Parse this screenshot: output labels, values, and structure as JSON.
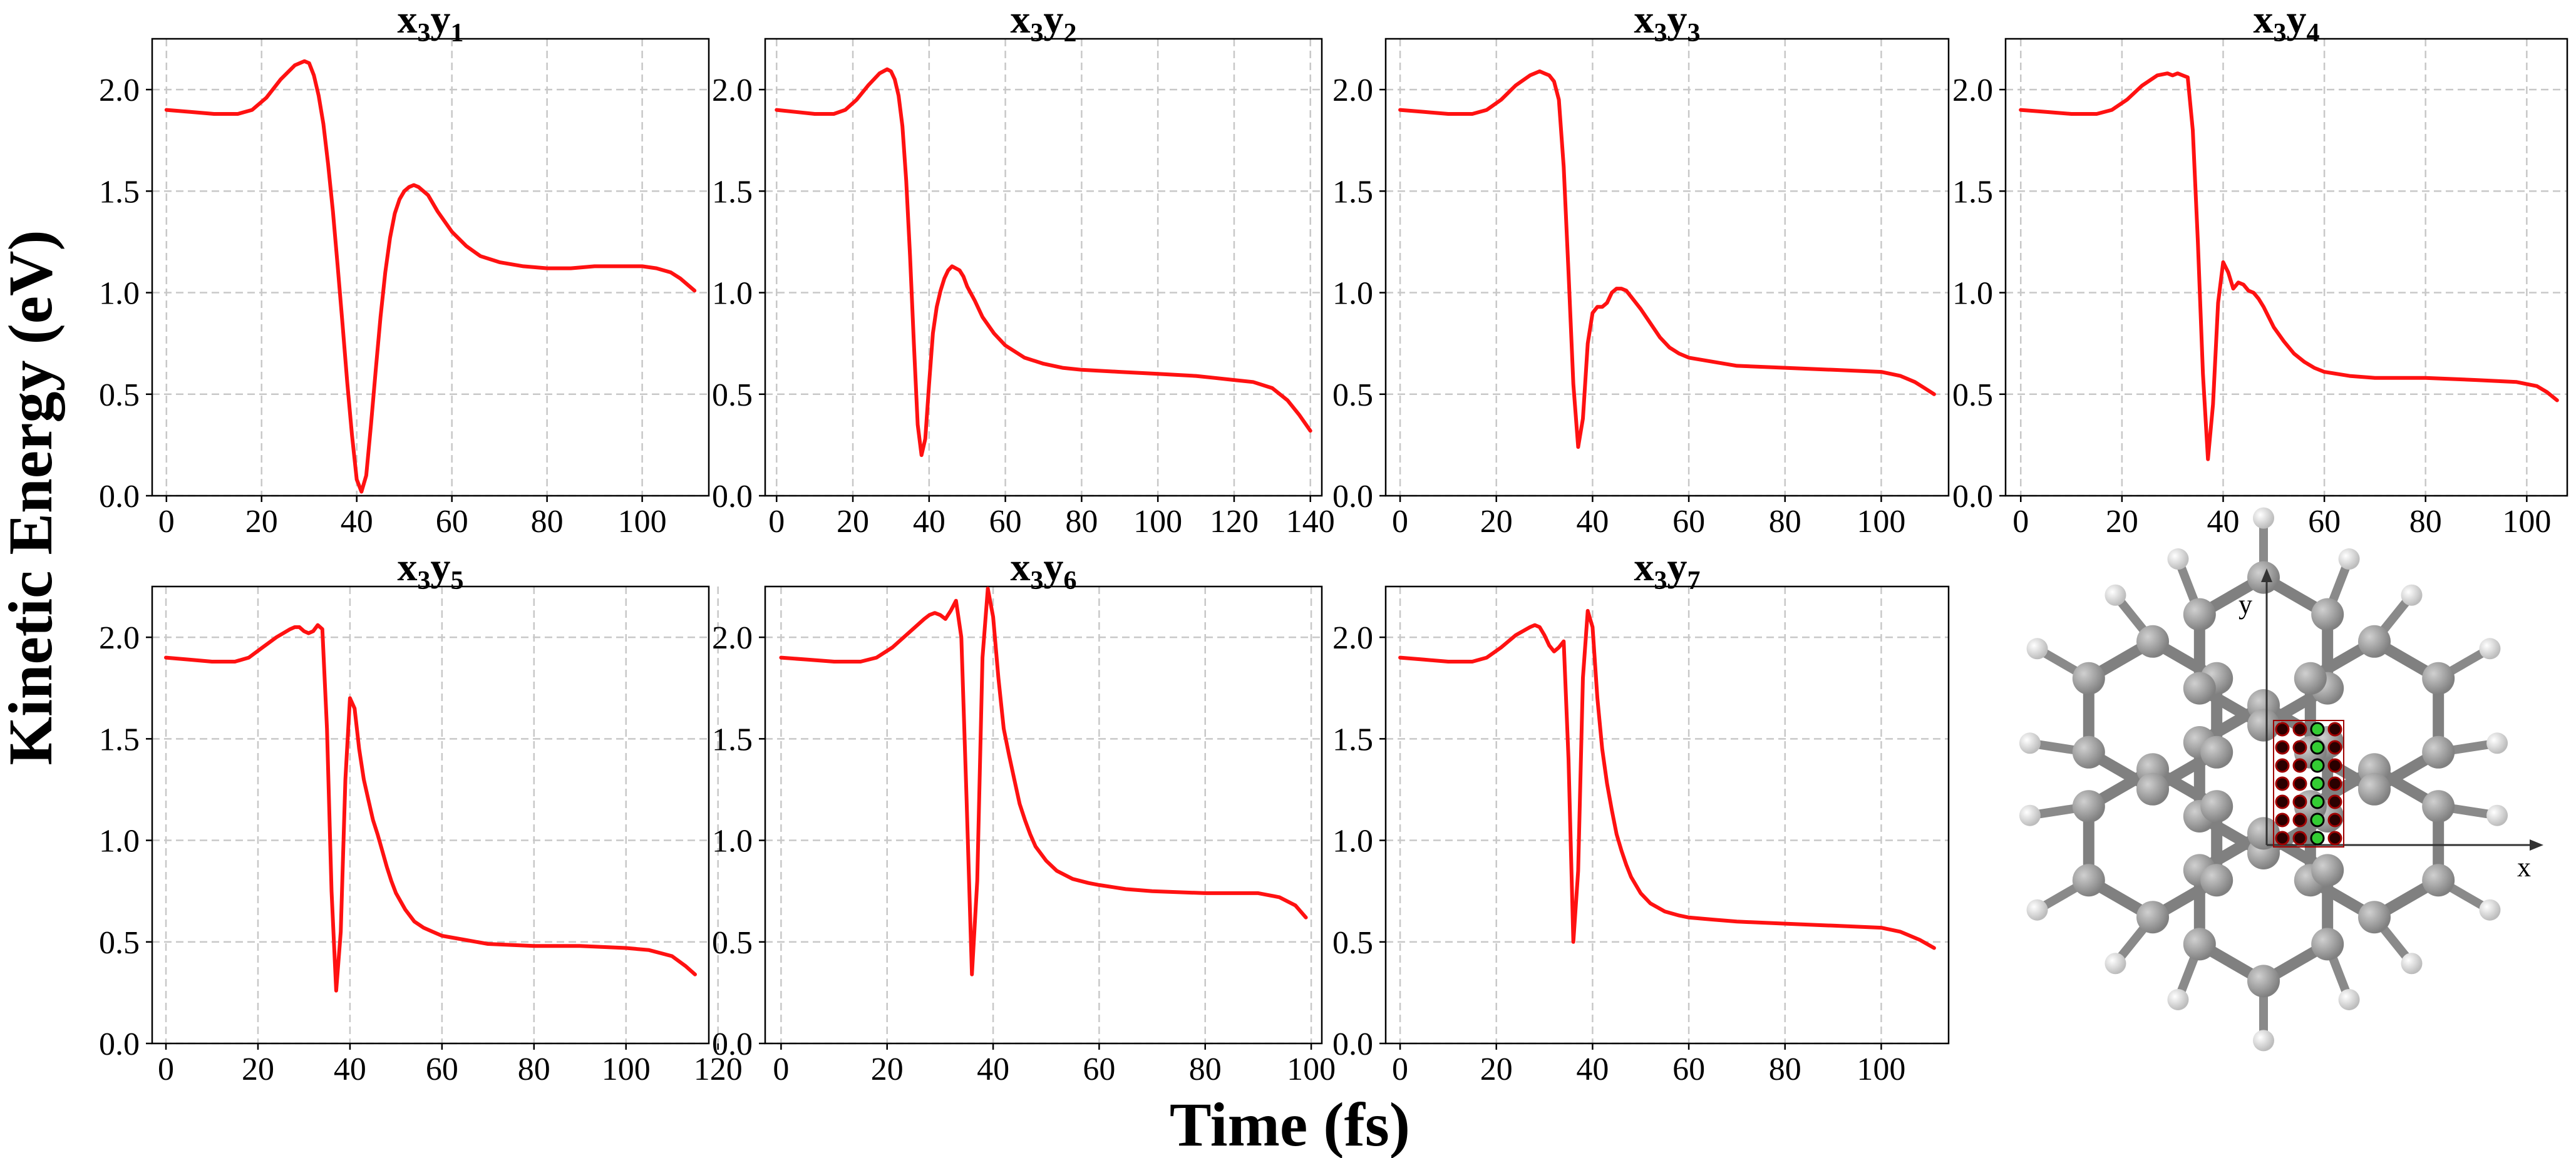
{
  "chart_data": [
    {
      "type": "line",
      "title": "x3y1",
      "title_base": "x",
      "title_sub1": "3",
      "title_mid": "y",
      "title_sub2": "1",
      "xlim": [
        -3,
        114
      ],
      "ylim": [
        0,
        2.25
      ],
      "xticks": [
        0,
        20,
        40,
        60,
        80,
        100
      ],
      "yticks": [
        0.0,
        0.5,
        1.0,
        1.5,
        2.0
      ],
      "series": [
        {
          "x": [
            0,
            5,
            10,
            15,
            18,
            21,
            24,
            27,
            29,
            30,
            31,
            32,
            33,
            34,
            35,
            36,
            37,
            38,
            39,
            40,
            41,
            42,
            43,
            44,
            45,
            46,
            47,
            48,
            49,
            50,
            51,
            52,
            53,
            55,
            57,
            60,
            63,
            66,
            70,
            75,
            80,
            85,
            90,
            95,
            100,
            103,
            106,
            108,
            110,
            111
          ],
          "y": [
            1.9,
            1.89,
            1.88,
            1.88,
            1.9,
            1.96,
            2.05,
            2.12,
            2.14,
            2.13,
            2.07,
            1.97,
            1.83,
            1.63,
            1.4,
            1.13,
            0.85,
            0.56,
            0.3,
            0.08,
            0.02,
            0.1,
            0.35,
            0.62,
            0.88,
            1.1,
            1.27,
            1.39,
            1.46,
            1.5,
            1.52,
            1.53,
            1.52,
            1.48,
            1.4,
            1.3,
            1.23,
            1.18,
            1.15,
            1.13,
            1.12,
            1.12,
            1.13,
            1.13,
            1.13,
            1.12,
            1.1,
            1.07,
            1.03,
            1.01
          ]
        }
      ]
    },
    {
      "type": "line",
      "title": "x3y2",
      "title_base": "x",
      "title_sub1": "3",
      "title_mid": "y",
      "title_sub2": "2",
      "xlim": [
        -3,
        143
      ],
      "ylim": [
        0,
        2.25
      ],
      "xticks": [
        0,
        20,
        40,
        60,
        80,
        100,
        120,
        140
      ],
      "yticks": [
        0.0,
        0.5,
        1.0,
        1.5,
        2.0
      ],
      "series": [
        {
          "x": [
            0,
            5,
            10,
            15,
            18,
            21,
            24,
            27,
            29,
            30,
            31,
            32,
            33,
            34,
            35,
            36,
            37,
            38,
            39,
            40,
            41,
            42,
            43,
            44,
            45,
            46,
            47,
            48,
            49,
            50,
            52,
            54,
            57,
            60,
            65,
            70,
            75,
            80,
            90,
            100,
            110,
            115,
            120,
            125,
            130,
            134,
            137,
            140
          ],
          "y": [
            1.9,
            1.89,
            1.88,
            1.88,
            1.9,
            1.95,
            2.02,
            2.08,
            2.1,
            2.09,
            2.05,
            1.97,
            1.82,
            1.55,
            1.18,
            0.75,
            0.35,
            0.2,
            0.28,
            0.55,
            0.8,
            0.93,
            1.01,
            1.07,
            1.11,
            1.13,
            1.12,
            1.11,
            1.08,
            1.03,
            0.96,
            0.88,
            0.8,
            0.74,
            0.68,
            0.65,
            0.63,
            0.62,
            0.61,
            0.6,
            0.59,
            0.58,
            0.57,
            0.56,
            0.53,
            0.47,
            0.4,
            0.32
          ]
        }
      ]
    },
    {
      "type": "line",
      "title": "x3y3",
      "title_base": "x",
      "title_sub1": "3",
      "title_mid": "y",
      "title_sub2": "3",
      "xlim": [
        -3,
        114
      ],
      "ylim": [
        0,
        2.25
      ],
      "xticks": [
        0,
        20,
        40,
        60,
        80,
        100
      ],
      "yticks": [
        0.0,
        0.5,
        1.0,
        1.5,
        2.0
      ],
      "series": [
        {
          "x": [
            0,
            5,
            10,
            15,
            18,
            21,
            24,
            27,
            29,
            30,
            31,
            32,
            33,
            34,
            35,
            36,
            37,
            38,
            39,
            40,
            41,
            42,
            43,
            44,
            45,
            46,
            47,
            48,
            49,
            50,
            52,
            54,
            56,
            58,
            60,
            65,
            70,
            80,
            90,
            100,
            104,
            107,
            109,
            111
          ],
          "y": [
            1.9,
            1.89,
            1.88,
            1.88,
            1.9,
            1.95,
            2.02,
            2.07,
            2.09,
            2.08,
            2.07,
            2.04,
            1.95,
            1.62,
            1.1,
            0.55,
            0.24,
            0.38,
            0.75,
            0.9,
            0.93,
            0.93,
            0.95,
            1.0,
            1.02,
            1.02,
            1.01,
            0.98,
            0.95,
            0.92,
            0.85,
            0.78,
            0.73,
            0.7,
            0.68,
            0.66,
            0.64,
            0.63,
            0.62,
            0.61,
            0.59,
            0.56,
            0.53,
            0.5
          ]
        }
      ]
    },
    {
      "type": "line",
      "title": "x3y4",
      "title_base": "x",
      "title_sub1": "3",
      "title_mid": "y",
      "title_sub2": "4",
      "xlim": [
        -3,
        108
      ],
      "ylim": [
        0,
        2.25
      ],
      "xticks": [
        0,
        20,
        40,
        60,
        80,
        100
      ],
      "yticks": [
        0.0,
        0.5,
        1.0,
        1.5,
        2.0
      ],
      "series": [
        {
          "x": [
            0,
            5,
            10,
            15,
            18,
            21,
            24,
            27,
            29,
            30,
            31,
            32,
            33,
            34,
            35,
            36,
            37,
            38,
            39,
            40,
            41,
            42,
            43,
            44,
            45,
            46,
            47,
            48,
            49,
            50,
            52,
            54,
            56,
            58,
            60,
            65,
            70,
            80,
            90,
            98,
            102,
            104,
            106
          ],
          "y": [
            1.9,
            1.89,
            1.88,
            1.88,
            1.9,
            1.95,
            2.02,
            2.07,
            2.08,
            2.07,
            2.08,
            2.07,
            2.06,
            1.8,
            1.25,
            0.6,
            0.18,
            0.45,
            0.95,
            1.15,
            1.1,
            1.02,
            1.05,
            1.04,
            1.01,
            1.0,
            0.97,
            0.93,
            0.88,
            0.83,
            0.76,
            0.7,
            0.66,
            0.63,
            0.61,
            0.59,
            0.58,
            0.58,
            0.57,
            0.56,
            0.54,
            0.51,
            0.47
          ]
        }
      ]
    },
    {
      "type": "line",
      "title": "x3y5",
      "title_base": "x",
      "title_sub1": "3",
      "title_mid": "y",
      "title_sub2": "5",
      "xlim": [
        -3,
        118
      ],
      "ylim": [
        0,
        2.25
      ],
      "xticks": [
        0,
        20,
        40,
        60,
        80,
        100,
        120
      ],
      "yticks": [
        0.0,
        0.5,
        1.0,
        1.5,
        2.0
      ],
      "series": [
        {
          "x": [
            0,
            5,
            10,
            15,
            18,
            21,
            24,
            27,
            28,
            29,
            30,
            31,
            32,
            33,
            34,
            35,
            36,
            37,
            38,
            39,
            40,
            41,
            42,
            43,
            44,
            45,
            46,
            47,
            48,
            49,
            50,
            52,
            54,
            56,
            58,
            60,
            65,
            70,
            80,
            90,
            100,
            105,
            110,
            113,
            115
          ],
          "y": [
            1.9,
            1.89,
            1.88,
            1.88,
            1.9,
            1.95,
            2.0,
            2.04,
            2.05,
            2.05,
            2.03,
            2.02,
            2.03,
            2.06,
            2.04,
            1.55,
            0.75,
            0.26,
            0.55,
            1.3,
            1.7,
            1.65,
            1.45,
            1.3,
            1.2,
            1.1,
            1.03,
            0.95,
            0.87,
            0.8,
            0.74,
            0.66,
            0.6,
            0.57,
            0.55,
            0.53,
            0.51,
            0.49,
            0.48,
            0.48,
            0.47,
            0.46,
            0.43,
            0.38,
            0.34
          ]
        }
      ]
    },
    {
      "type": "line",
      "title": "x3y6",
      "title_base": "x",
      "title_sub1": "3",
      "title_mid": "y",
      "title_sub2": "6",
      "xlim": [
        -3,
        102
      ],
      "ylim": [
        0,
        2.25
      ],
      "xticks": [
        0,
        20,
        40,
        60,
        80,
        100
      ],
      "yticks": [
        0.0,
        0.5,
        1.0,
        1.5,
        2.0
      ],
      "series": [
        {
          "x": [
            0,
            5,
            10,
            15,
            18,
            21,
            24,
            27,
            28,
            29,
            30,
            31,
            32,
            33,
            34,
            35,
            36,
            37,
            38,
            39,
            40,
            41,
            42,
            43,
            44,
            45,
            46,
            47,
            48,
            50,
            52,
            55,
            58,
            60,
            65,
            70,
            80,
            90,
            94,
            97,
            99
          ],
          "y": [
            1.9,
            1.89,
            1.88,
            1.88,
            1.9,
            1.95,
            2.02,
            2.09,
            2.11,
            2.12,
            2.11,
            2.09,
            2.13,
            2.18,
            2.0,
            1.2,
            0.34,
            0.8,
            1.9,
            2.24,
            2.1,
            1.8,
            1.55,
            1.42,
            1.3,
            1.18,
            1.1,
            1.03,
            0.97,
            0.9,
            0.85,
            0.81,
            0.79,
            0.78,
            0.76,
            0.75,
            0.74,
            0.74,
            0.72,
            0.68,
            0.62
          ]
        }
      ]
    },
    {
      "type": "line",
      "title": "x3y7",
      "title_base": "x",
      "title_sub1": "3",
      "title_mid": "y",
      "title_sub2": "7",
      "xlim": [
        -3,
        114
      ],
      "ylim": [
        0,
        2.25
      ],
      "xticks": [
        0,
        20,
        40,
        60,
        80,
        100
      ],
      "yticks": [
        0.0,
        0.5,
        1.0,
        1.5,
        2.0
      ],
      "series": [
        {
          "x": [
            0,
            5,
            10,
            15,
            18,
            21,
            24,
            27,
            28,
            29,
            30,
            31,
            32,
            33,
            34,
            35,
            36,
            37,
            38,
            39,
            40,
            41,
            42,
            43,
            44,
            45,
            46,
            47,
            48,
            50,
            52,
            55,
            58,
            60,
            65,
            70,
            80,
            90,
            100,
            104,
            108,
            111
          ],
          "y": [
            1.9,
            1.89,
            1.88,
            1.88,
            1.9,
            1.95,
            2.01,
            2.05,
            2.06,
            2.05,
            2.01,
            1.96,
            1.93,
            1.95,
            1.98,
            1.4,
            0.5,
            0.85,
            1.8,
            2.13,
            2.05,
            1.7,
            1.45,
            1.28,
            1.15,
            1.03,
            0.95,
            0.88,
            0.82,
            0.74,
            0.69,
            0.65,
            0.63,
            0.62,
            0.61,
            0.6,
            0.59,
            0.58,
            0.57,
            0.55,
            0.51,
            0.47
          ]
        }
      ]
    }
  ],
  "shared": {
    "ylabel": "Kinetic Energy (eV)",
    "xlabel": "Time (fs)",
    "series_color": "#ff1111"
  },
  "molecule": {
    "axis_x_label": "x",
    "axis_y_label": "y",
    "atom_color": "#808080",
    "hydrogen_color": "#f2f2f2",
    "grid_off_color": "#2a0000",
    "grid_on_color": "#33cc33",
    "grid_rows": 7,
    "grid_cols": 4,
    "highlight_col": 3
  }
}
